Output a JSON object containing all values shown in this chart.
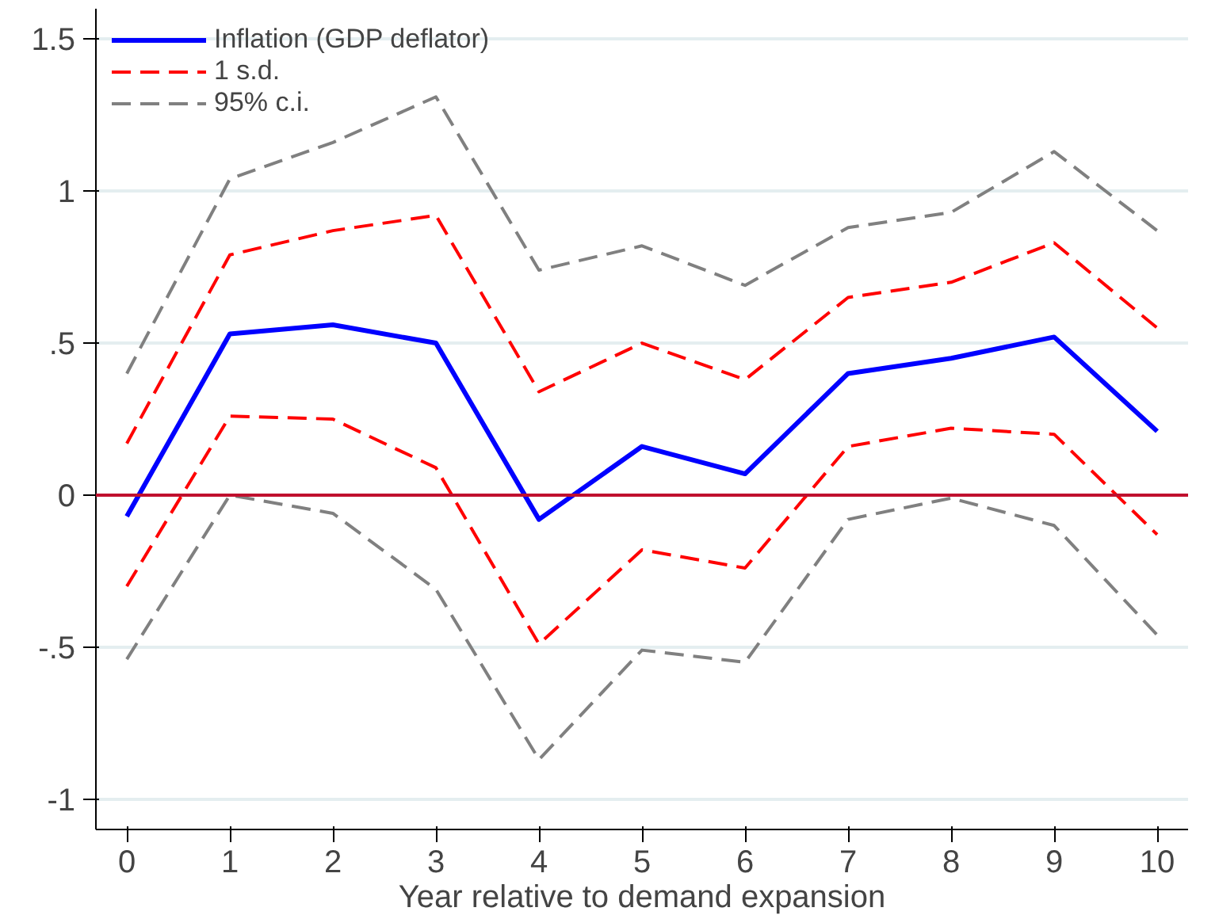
{
  "chart_data": {
    "type": "line",
    "xlabel": "Year relative to demand expansion",
    "x": [
      0,
      1,
      2,
      3,
      4,
      5,
      6,
      7,
      8,
      9,
      10
    ],
    "series": [
      {
        "name": "Inflation (GDP deflator)",
        "color": "#0000ff",
        "line_style": "solid",
        "values": [
          -0.07,
          0.53,
          0.56,
          0.5,
          -0.08,
          0.16,
          0.07,
          0.4,
          0.45,
          0.52,
          0.21
        ]
      },
      {
        "name": "1 s.d.",
        "color": "#ff0000",
        "line_style": "dashed",
        "values": [
          0.17,
          0.79,
          0.87,
          0.92,
          0.34,
          0.5,
          0.38,
          0.65,
          0.7,
          0.83,
          0.55
        ]
      },
      {
        "color": "#ff0000",
        "line_style": "dashed",
        "values": [
          -0.3,
          0.26,
          0.25,
          0.09,
          -0.49,
          -0.18,
          -0.24,
          0.16,
          0.22,
          0.2,
          -0.13
        ]
      },
      {
        "name": "95% c.i.",
        "color": "#808080",
        "line_style": "dashed",
        "values": [
          0.4,
          1.04,
          1.16,
          1.31,
          0.74,
          0.82,
          0.69,
          0.88,
          0.93,
          1.13,
          0.87
        ]
      },
      {
        "color": "#808080",
        "line_style": "dashed",
        "values": [
          -0.54,
          0.0,
          -0.06,
          -0.31,
          -0.87,
          -0.51,
          -0.55,
          -0.08,
          -0.01,
          -0.1,
          -0.46
        ]
      }
    ],
    "xlim": [
      -0.3,
      10.3
    ],
    "ylim": [
      -1.1,
      1.6
    ],
    "xticks": [
      0,
      1,
      2,
      3,
      4,
      5,
      6,
      7,
      8,
      9,
      10
    ],
    "yticks": [
      {
        "value": -1,
        "label": "-1"
      },
      {
        "value": -0.5,
        "label": "-.5"
      },
      0,
      {
        "value": 0.5,
        "label": ".5"
      },
      1,
      1.5
    ],
    "ref_lines": [
      {
        "axis": "y",
        "value": 0,
        "color": "#c0102e"
      }
    ],
    "grid": "y",
    "legend": "top left"
  }
}
